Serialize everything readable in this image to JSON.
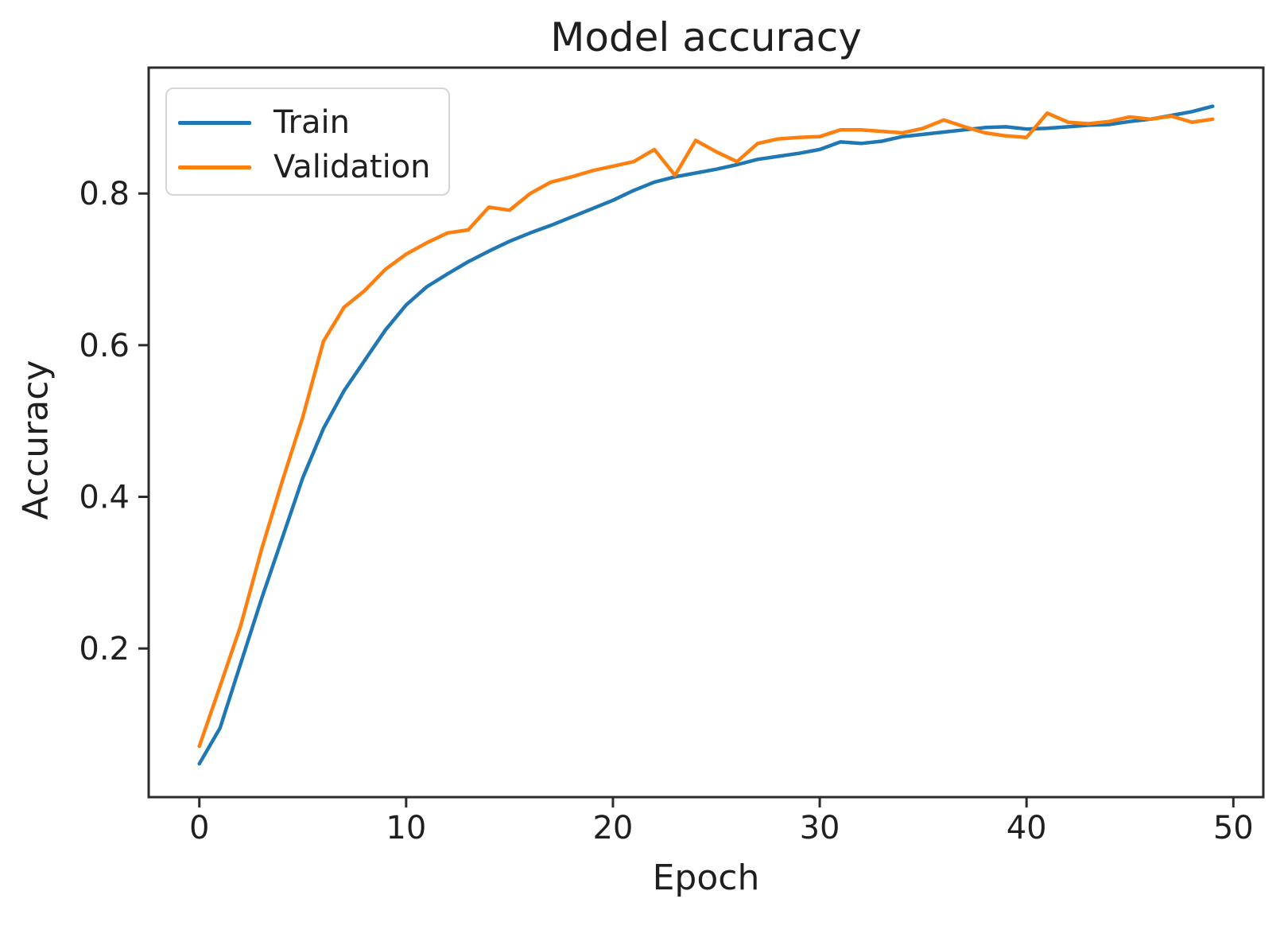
{
  "chart_data": {
    "type": "line",
    "title": "Model accuracy",
    "xlabel": "Epoch",
    "ylabel": "Accuracy",
    "x_ticks": [
      0,
      10,
      20,
      30,
      40,
      50
    ],
    "y_ticks": [
      0.2,
      0.4,
      0.6,
      0.8
    ],
    "xlim": [
      -2.45,
      51.45
    ],
    "ylim": [
      0.004,
      0.966
    ],
    "grid": false,
    "legend_position": "upper left",
    "colors": {
      "train": "#1f77b4",
      "validation": "#ff7f0e",
      "spine": "#2b2b2b",
      "text": "#1f1f1f"
    },
    "x": "epoch index 0-49",
    "series": [
      {
        "name": "Train",
        "color": "#1f77b4",
        "values": [
          0.048,
          0.095,
          0.18,
          0.265,
          0.345,
          0.425,
          0.49,
          0.54,
          0.58,
          0.62,
          0.653,
          0.677,
          0.694,
          0.71,
          0.724,
          0.737,
          0.748,
          0.758,
          0.769,
          0.78,
          0.791,
          0.804,
          0.815,
          0.822,
          0.827,
          0.832,
          0.838,
          0.845,
          0.849,
          0.853,
          0.858,
          0.868,
          0.866,
          0.869,
          0.875,
          0.878,
          0.881,
          0.884,
          0.887,
          0.888,
          0.885,
          0.886,
          0.888,
          0.89,
          0.891,
          0.895,
          0.898,
          0.903,
          0.908,
          0.915
        ]
      },
      {
        "name": "Validation",
        "color": "#ff7f0e",
        "values": [
          0.071,
          0.15,
          0.23,
          0.33,
          0.42,
          0.505,
          0.605,
          0.65,
          0.672,
          0.7,
          0.72,
          0.735,
          0.748,
          0.752,
          0.782,
          0.778,
          0.8,
          0.815,
          0.822,
          0.83,
          0.836,
          0.842,
          0.858,
          0.824,
          0.87,
          0.855,
          0.842,
          0.866,
          0.872,
          0.874,
          0.875,
          0.884,
          0.884,
          0.882,
          0.88,
          0.886,
          0.897,
          0.888,
          0.88,
          0.876,
          0.874,
          0.906,
          0.894,
          0.892,
          0.895,
          0.901,
          0.898,
          0.902,
          0.894,
          0.898
        ]
      }
    ]
  }
}
